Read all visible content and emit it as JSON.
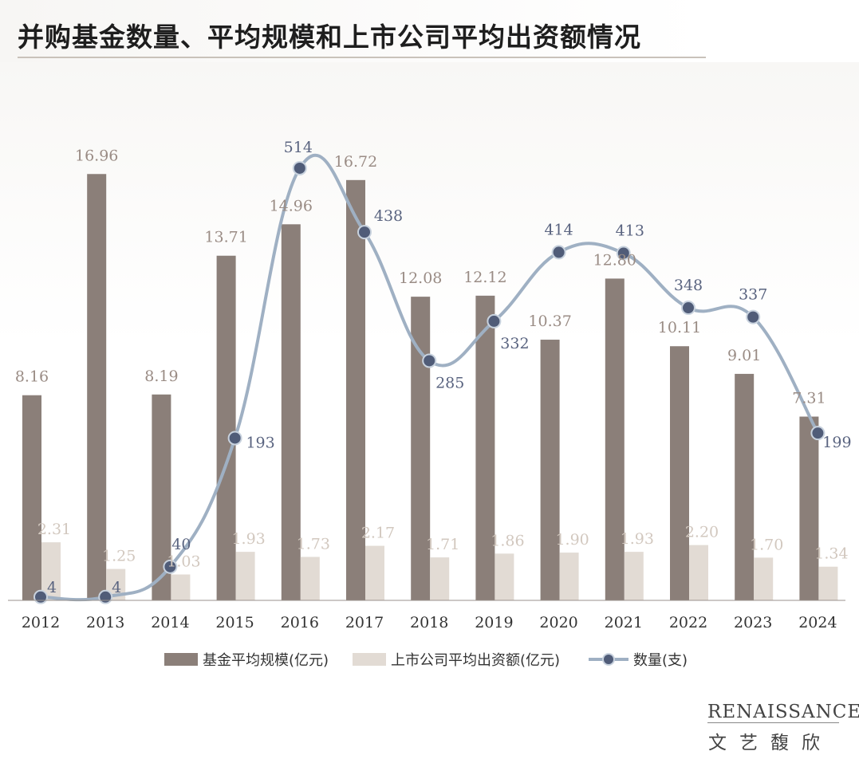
{
  "title": "并购基金数量、平均规模和上市公司平均出资额情况",
  "logo": {
    "en": "RENAISSANCE",
    "cn": "文艺馥欣"
  },
  "colors": {
    "bar_avg_scale": "#8b7f79",
    "bar_listed_contrib": "#e2dbd4",
    "line_count": "#9fb0c3",
    "marker": "#505c78",
    "label_count": "#5a6480",
    "label_scale": "#9a8c85",
    "label_contrib": "#d2c8bf"
  },
  "chart_data": {
    "type": "bar",
    "categories": [
      "2012",
      "2013",
      "2014",
      "2015",
      "2016",
      "2017",
      "2018",
      "2019",
      "2020",
      "2021",
      "2022",
      "2023",
      "2024"
    ],
    "series": [
      {
        "name": "基金平均规模(亿元)",
        "type": "bar",
        "axis": "left",
        "values": [
          8.16,
          16.96,
          8.19,
          13.71,
          14.96,
          16.72,
          12.08,
          12.12,
          10.37,
          12.8,
          10.11,
          9.01,
          7.31
        ],
        "labels": [
          "8.16",
          "16.96",
          "8.19",
          "13.71",
          "14.96",
          "16.72",
          "12.08",
          "12.12",
          "10.37",
          "12.80",
          "10.11",
          "9.01",
          "7.31"
        ]
      },
      {
        "name": "上市公司平均出资额(亿元)",
        "type": "bar",
        "axis": "left",
        "values": [
          2.31,
          1.25,
          1.03,
          1.93,
          1.73,
          2.17,
          1.71,
          1.86,
          1.9,
          1.93,
          2.2,
          1.7,
          1.34
        ],
        "labels": [
          "2.31",
          "1.25",
          "1.03",
          "1.93",
          "1.73",
          "2.17",
          "1.71",
          "1.86",
          "1.90",
          "1.93",
          "2.20",
          "1.70",
          "1.34"
        ]
      },
      {
        "name": "数量(支)",
        "type": "line",
        "axis": "right",
        "smooth": true,
        "values": [
          4,
          4,
          40,
          193,
          514,
          438,
          285,
          332,
          414,
          413,
          348,
          337,
          199
        ],
        "labels": [
          "4",
          "4",
          "40",
          "193",
          "514",
          "438",
          "285",
          "332",
          "414",
          "413",
          "348",
          "337",
          "199"
        ]
      }
    ],
    "legend_position": "bottom",
    "grid": false
  }
}
